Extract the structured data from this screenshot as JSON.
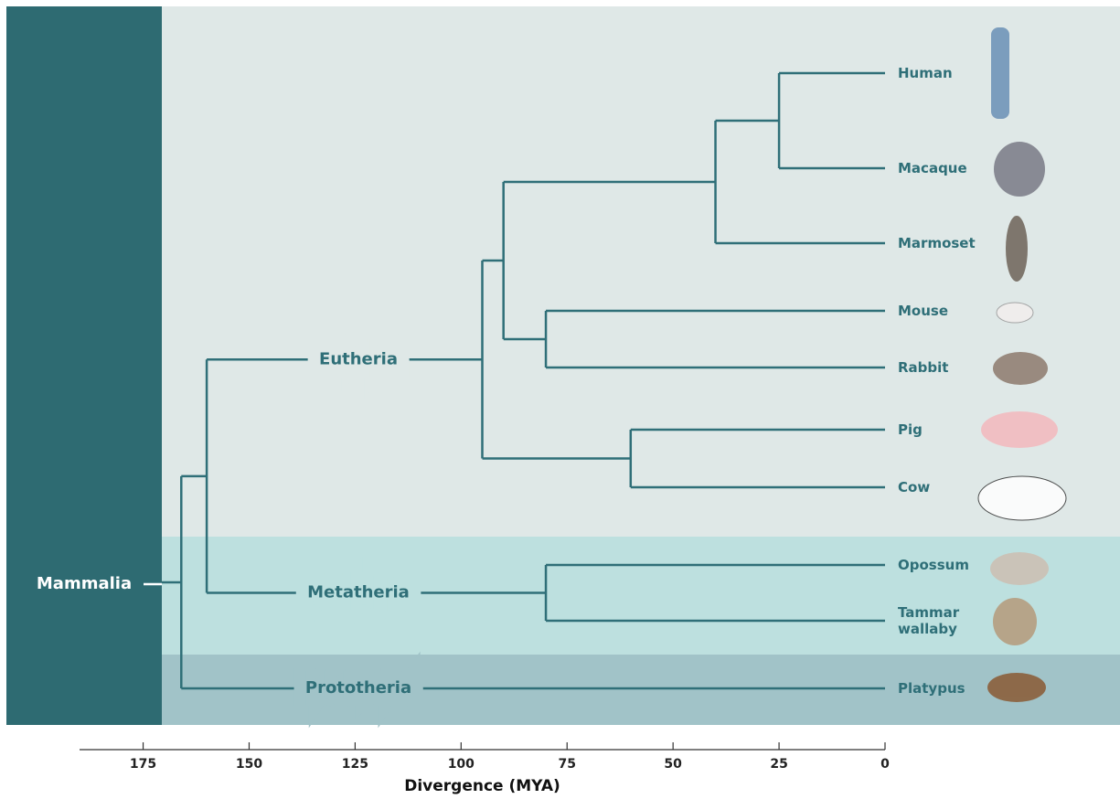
{
  "title_root": "Mammalia",
  "clades": [
    {
      "label": "Eutheria"
    },
    {
      "label": "Metatheria"
    },
    {
      "label": "Prototheria"
    }
  ],
  "taxa": [
    "Human",
    "Macaque",
    "Marmoset",
    "Mouse",
    "Rabbit",
    "Pig",
    "Cow",
    "Opossum",
    "Tammar wallaby",
    "Platypus"
  ],
  "nodes": [
    {
      "time": 166
    },
    {
      "time": 160
    },
    {
      "time": 95
    },
    {
      "time": 90
    },
    {
      "time": 40
    },
    {
      "time": 25
    },
    {
      "time": 80
    },
    {
      "time": 60
    },
    {
      "time": 80
    }
  ],
  "axis": {
    "label": "Divergence (MYA)",
    "xlim": [
      190,
      0
    ],
    "xticks": [
      175,
      150,
      125,
      100,
      75,
      50,
      25,
      0
    ]
  }
}
